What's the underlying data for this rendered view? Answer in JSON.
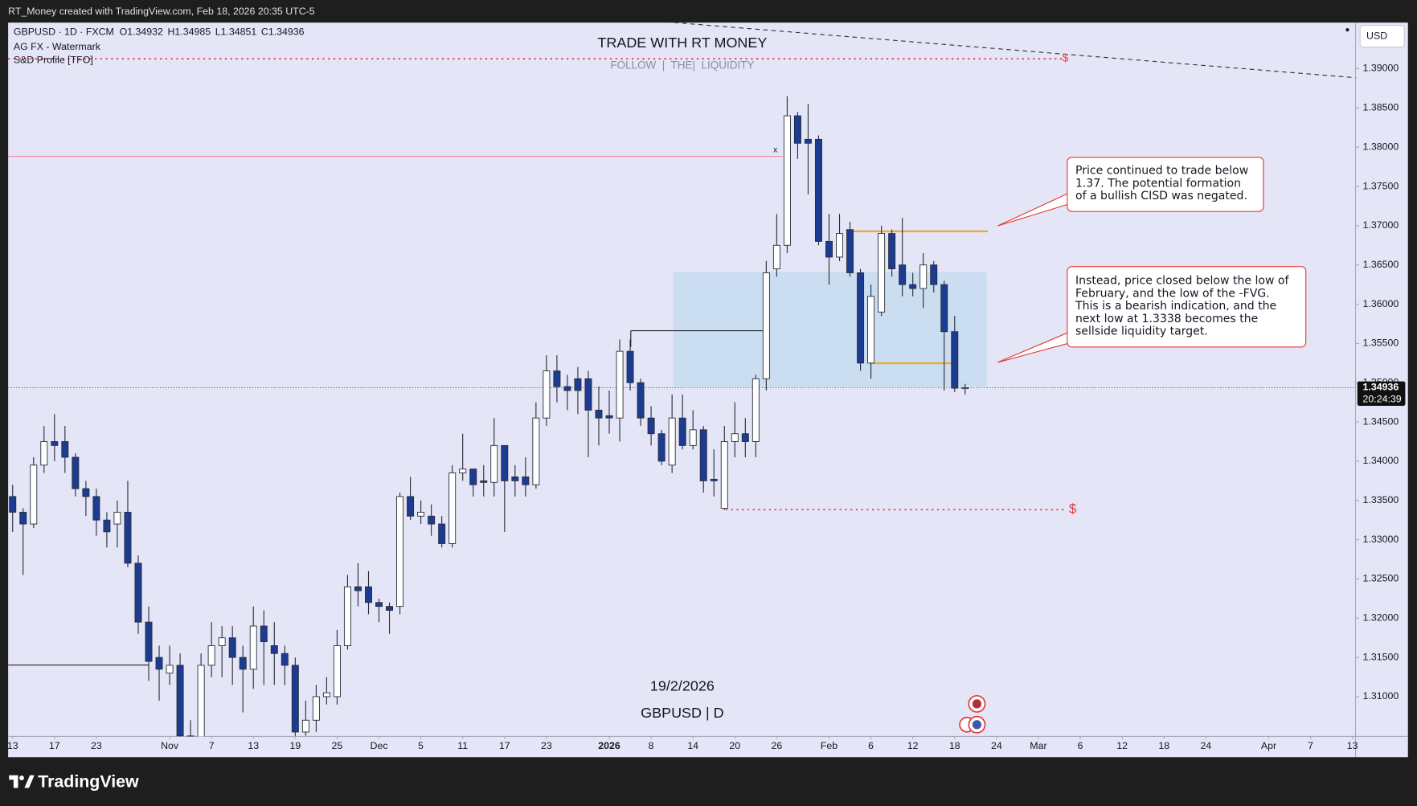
{
  "top_bar": {
    "text": "RT_Money created with TradingView.com, Feb 18, 2026 20:35 UTC-5"
  },
  "legend": {
    "symbol": "GBPUSD · 1D · FXCM",
    "ohlc": [
      "O1.34932",
      "H1.34985",
      "L1.34851",
      "C1.34936"
    ],
    "indicators": [
      "AG FX - Watermark",
      "S&D Profile [TFO]"
    ]
  },
  "price_axis": {
    "currency": "USD",
    "last_price": "1.34936",
    "countdown": "20:24:39"
  },
  "annotations": {
    "marker_x": "x",
    "dollar_top": "$",
    "dollar_bottom": "$",
    "callouts": [
      {
        "lines": [
          "Price continued to trade below",
          "1.37.  The potential formation",
          "of a bullish CISD was negated."
        ]
      },
      {
        "lines": [
          "Instead, price closed below the low of",
          "February, and the low of the -FVG.",
          "This is a bearish indication, and the",
          "next low at 1.3338 becomes the",
          "sellside liquidity target."
        ]
      }
    ],
    "date": "19/2/2026",
    "pair": "GBPUSD | D"
  },
  "footer": {
    "brand": "TradingView"
  },
  "chart_data": {
    "type": "candlestick",
    "title": "TRADE WITH RT MONEY",
    "subtitle": "FOLLOW  |  THE|  LIQUIDITY",
    "open": [
      1.3355,
      1.3335,
      1.332,
      1.3395,
      1.3425,
      1.3425,
      1.3405,
      1.3365,
      1.3355,
      1.3325,
      1.332,
      1.3335,
      1.327,
      1.3195,
      1.315,
      1.313,
      1.314,
      1.305,
      1.3045,
      1.314,
      1.3165,
      1.3175,
      1.315,
      1.3135,
      1.319,
      1.3165,
      1.3155,
      1.314,
      1.3055,
      1.307,
      1.31,
      1.31,
      1.3165,
      1.324,
      1.324,
      1.322,
      1.3215,
      1.3215,
      1.3355,
      1.333,
      1.333,
      1.332,
      1.3295,
      1.3385,
      1.339,
      1.3375,
      1.3373,
      1.342,
      1.338,
      1.338,
      1.337,
      1.3455,
      1.3515,
      1.3495,
      1.3505,
      1.3505,
      1.3465,
      1.3458,
      1.3455,
      1.354,
      1.35,
      1.3455,
      1.3435,
      1.3395,
      1.3455,
      1.342,
      1.344,
      1.3377,
      1.334,
      1.3425,
      1.3435,
      1.3425,
      1.3505,
      1.3645,
      1.3675,
      1.384,
      1.381,
      1.381,
      1.368,
      1.366,
      1.3695,
      1.364,
      1.3525,
      1.359,
      1.369,
      1.365,
      1.3625,
      1.362,
      1.365,
      1.3625,
      1.3565,
      1.34932
    ],
    "high": [
      1.337,
      1.334,
      1.3405,
      1.3445,
      1.346,
      1.3445,
      1.341,
      1.3375,
      1.3365,
      1.3335,
      1.335,
      1.3375,
      1.328,
      1.3215,
      1.3165,
      1.3165,
      1.3155,
      1.307,
      1.3155,
      1.3195,
      1.319,
      1.319,
      1.3165,
      1.3215,
      1.321,
      1.3195,
      1.3165,
      1.315,
      1.3095,
      1.3115,
      1.3125,
      1.3185,
      1.3255,
      1.327,
      1.326,
      1.3225,
      1.322,
      1.336,
      1.338,
      1.335,
      1.3345,
      1.333,
      1.3395,
      1.3435,
      1.339,
      1.3395,
      1.3455,
      1.342,
      1.3395,
      1.3405,
      1.3475,
      1.3535,
      1.3535,
      1.351,
      1.352,
      1.3515,
      1.3495,
      1.349,
      1.3555,
      1.3555,
      1.3505,
      1.347,
      1.344,
      1.3485,
      1.3485,
      1.3465,
      1.3445,
      1.3415,
      1.3445,
      1.3475,
      1.3455,
      1.351,
      1.3655,
      1.3715,
      1.3865,
      1.3845,
      1.3855,
      1.3815,
      1.3715,
      1.3715,
      1.3705,
      1.3645,
      1.3625,
      1.37,
      1.3695,
      1.371,
      1.364,
      1.3665,
      1.3655,
      1.363,
      1.3585,
      1.34985
    ],
    "low": [
      1.331,
      1.3255,
      1.3315,
      1.3385,
      1.34,
      1.3385,
      1.3355,
      1.333,
      1.3305,
      1.329,
      1.329,
      1.3265,
      1.318,
      1.312,
      1.3095,
      1.3115,
      1.304,
      1.302,
      1.303,
      1.3125,
      1.3125,
      1.3115,
      1.308,
      1.311,
      1.3115,
      1.3115,
      1.3115,
      1.305,
      1.305,
      1.3055,
      1.309,
      1.309,
      1.316,
      1.3215,
      1.3205,
      1.3195,
      1.318,
      1.3205,
      1.3325,
      1.332,
      1.3305,
      1.329,
      1.329,
      1.3375,
      1.3355,
      1.3355,
      1.3355,
      1.331,
      1.3355,
      1.3355,
      1.3365,
      1.3445,
      1.3475,
      1.3465,
      1.346,
      1.3405,
      1.342,
      1.3435,
      1.3425,
      1.349,
      1.3445,
      1.342,
      1.3395,
      1.3385,
      1.3415,
      1.3415,
      1.336,
      1.3355,
      1.3338,
      1.3405,
      1.3405,
      1.3405,
      1.349,
      1.3635,
      1.3665,
      1.3785,
      1.374,
      1.3675,
      1.3625,
      1.3655,
      1.3635,
      1.3515,
      1.3505,
      1.3585,
      1.3635,
      1.361,
      1.361,
      1.3595,
      1.3615,
      1.349,
      1.3488,
      1.34851
    ],
    "close": [
      1.3335,
      1.332,
      1.3395,
      1.3425,
      1.342,
      1.3405,
      1.3365,
      1.3355,
      1.3325,
      1.331,
      1.3335,
      1.327,
      1.3195,
      1.3145,
      1.3135,
      1.314,
      1.305,
      1.304,
      1.314,
      1.3165,
      1.3175,
      1.315,
      1.3135,
      1.319,
      1.317,
      1.3155,
      1.314,
      1.3055,
      1.307,
      1.31,
      1.3105,
      1.3165,
      1.324,
      1.3235,
      1.322,
      1.3215,
      1.321,
      1.3355,
      1.333,
      1.3335,
      1.332,
      1.3295,
      1.3385,
      1.339,
      1.337,
      1.3373,
      1.342,
      1.3375,
      1.3375,
      1.337,
      1.3455,
      1.3515,
      1.3495,
      1.349,
      1.349,
      1.3465,
      1.3455,
      1.3455,
      1.354,
      1.35,
      1.3455,
      1.3435,
      1.34,
      1.3455,
      1.342,
      1.344,
      1.3375,
      1.3375,
      1.3425,
      1.3435,
      1.3425,
      1.3505,
      1.364,
      1.3675,
      1.384,
      1.3805,
      1.3805,
      1.368,
      1.366,
      1.369,
      1.364,
      1.3525,
      1.361,
      1.369,
      1.3645,
      1.3625,
      1.362,
      1.365,
      1.3625,
      1.3565,
      1.3493,
      1.34936
    ],
    "up_color": "#ffffff",
    "down_color": "#1b3c91",
    "wick_color": "#2a2e39",
    "xlim": [
      -0.43,
      128.3
    ],
    "xticks": [
      {
        "value": 0,
        "label": "13"
      },
      {
        "value": 4,
        "label": "17"
      },
      {
        "value": 8,
        "label": "23"
      },
      {
        "value": 15,
        "label": "Nov"
      },
      {
        "value": 19,
        "label": "7"
      },
      {
        "value": 23,
        "label": "13"
      },
      {
        "value": 27,
        "label": "19"
      },
      {
        "value": 31,
        "label": "25"
      },
      {
        "value": 35,
        "label": "Dec"
      },
      {
        "value": 39,
        "label": "5"
      },
      {
        "value": 43,
        "label": "11"
      },
      {
        "value": 47,
        "label": "17"
      },
      {
        "value": 51,
        "label": "23"
      },
      {
        "value": 57,
        "label": "2026"
      },
      {
        "value": 61,
        "label": "8"
      },
      {
        "value": 65,
        "label": "14"
      },
      {
        "value": 69,
        "label": "20"
      },
      {
        "value": 73,
        "label": "26"
      },
      {
        "value": 78,
        "label": "Feb"
      },
      {
        "value": 82,
        "label": "6"
      },
      {
        "value": 86,
        "label": "12"
      },
      {
        "value": 90,
        "label": "18"
      },
      {
        "value": 94,
        "label": "24"
      },
      {
        "value": 98,
        "label": "Mar"
      },
      {
        "value": 102,
        "label": "6"
      },
      {
        "value": 106,
        "label": "12"
      },
      {
        "value": 110,
        "label": "18"
      },
      {
        "value": 114,
        "label": "24"
      },
      {
        "value": 120,
        "label": "Apr"
      },
      {
        "value": 124,
        "label": "7"
      },
      {
        "value": 128,
        "label": "13"
      }
    ],
    "ylim": [
      1.30494,
      1.39587
    ],
    "yticks": [
      {
        "value": 1.31,
        "label": "1.31000"
      },
      {
        "value": 1.315,
        "label": "1.31500"
      },
      {
        "value": 1.32,
        "label": "1.32000"
      },
      {
        "value": 1.325,
        "label": "1.32500"
      },
      {
        "value": 1.33,
        "label": "1.33000"
      },
      {
        "value": 1.335,
        "label": "1.33500"
      },
      {
        "value": 1.34,
        "label": "1.34000"
      },
      {
        "value": 1.345,
        "label": "1.34500"
      },
      {
        "value": 1.35,
        "label": "1.35000"
      },
      {
        "value": 1.355,
        "label": "1.35500"
      },
      {
        "value": 1.36,
        "label": "1.36000"
      },
      {
        "value": 1.365,
        "label": "1.36500"
      },
      {
        "value": 1.37,
        "label": "1.37000"
      },
      {
        "value": 1.375,
        "label": "1.37500"
      },
      {
        "value": 1.38,
        "label": "1.38000"
      },
      {
        "value": 1.385,
        "label": "1.38500"
      },
      {
        "value": 1.39,
        "label": "1.39000"
      }
    ],
    "grid": false
  }
}
